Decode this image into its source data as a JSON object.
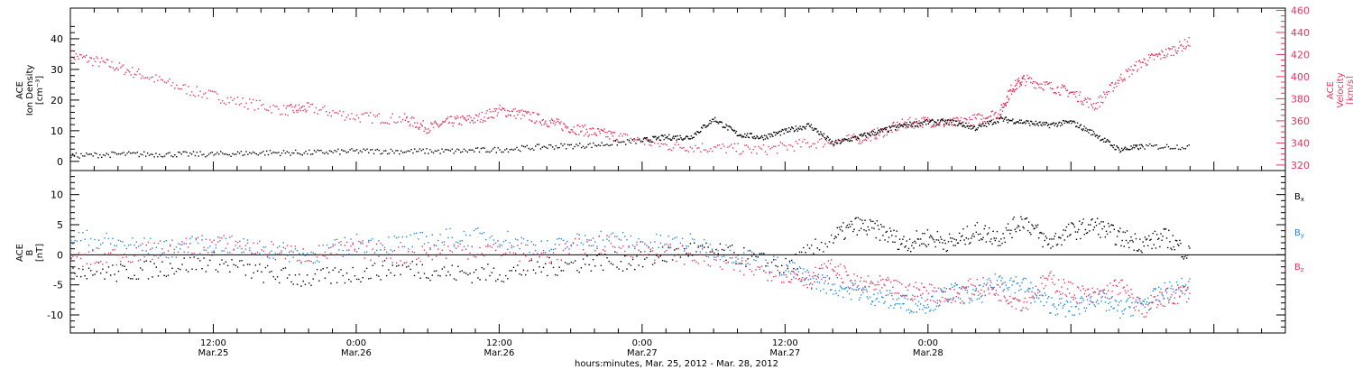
{
  "colors": {
    "black": "#000000",
    "pink": "#e8345f",
    "blue": "#1e88e5"
  },
  "chart_data": [
    {
      "type": "scatter",
      "panel": "top",
      "ylabel_lines": [
        "ACE",
        "Ion Density",
        "[cm⁻³]"
      ],
      "y2label_lines": [
        "ACE",
        "Velocity",
        "[km/s]"
      ],
      "xlim_hours": [
        0,
        102
      ],
      "ylim": [
        -3,
        50
      ],
      "y2lim": [
        315,
        462
      ],
      "yticks": [
        0,
        10,
        20,
        30,
        40
      ],
      "y2ticks": [
        320,
        340,
        360,
        380,
        400,
        420,
        440,
        460
      ],
      "series": [
        {
          "color_key": "black",
          "axis": "left",
          "x": [
            0,
            4,
            8,
            12,
            16,
            20,
            24,
            28,
            32,
            36,
            40,
            44,
            48,
            50,
            52,
            54,
            56,
            58,
            60,
            62,
            64,
            66,
            68,
            70,
            72,
            74,
            76,
            78,
            80,
            82,
            84,
            86,
            88,
            90,
            94
          ],
          "y": [
            2,
            2.5,
            2.5,
            2.5,
            3,
            3,
            3.5,
            3.5,
            3.5,
            4,
            5,
            5.5,
            7,
            8,
            8,
            14,
            9,
            8,
            10,
            12,
            6,
            8,
            10,
            12,
            13,
            13,
            11,
            14,
            13,
            12,
            13,
            9,
            4,
            5,
            5
          ]
        },
        {
          "color_key": "pink",
          "axis": "right",
          "x": [
            0,
            3,
            6,
            10,
            14,
            18,
            20,
            24,
            28,
            30,
            32,
            34,
            36,
            38,
            40,
            42,
            44,
            46,
            50,
            54,
            58,
            62,
            66,
            68,
            70,
            72,
            74,
            76,
            78,
            79,
            80,
            82,
            84,
            86,
            88,
            90,
            92,
            94
          ],
          "y": [
            420,
            412,
            402,
            388,
            378,
            370,
            372,
            364,
            362,
            354,
            360,
            362,
            370,
            366,
            360,
            354,
            350,
            346,
            338,
            336,
            334,
            340,
            344,
            350,
            358,
            360,
            358,
            362,
            368,
            390,
            398,
            392,
            386,
            374,
            398,
            414,
            422,
            432
          ]
        }
      ]
    },
    {
      "type": "scatter",
      "panel": "bottom",
      "ylabel_lines": [
        "ACE",
        "B",
        "[nT]"
      ],
      "ylim": [
        -13,
        14
      ],
      "yticks": [
        -10,
        -5,
        0,
        5,
        10
      ],
      "legend": [
        {
          "label": "B",
          "sub": "x",
          "color_key": "black"
        },
        {
          "label": "B",
          "sub": "y",
          "color_key": "blue"
        },
        {
          "label": "B",
          "sub": "z",
          "color_key": "pink"
        }
      ],
      "series": [
        {
          "color_key": "black",
          "x": [
            0,
            4,
            8,
            12,
            16,
            20,
            24,
            28,
            32,
            36,
            40,
            44,
            48,
            52,
            56,
            60,
            64,
            66,
            68,
            70,
            72,
            74,
            76,
            78,
            80,
            82,
            84,
            86,
            88,
            90,
            92,
            94
          ],
          "y": [
            -2,
            -3,
            -2,
            -1,
            -3,
            -4,
            -3,
            -2,
            -3,
            -3,
            -2,
            -1,
            -1,
            1,
            0,
            -2,
            3,
            5,
            4,
            2,
            3,
            2,
            4,
            3,
            6,
            2,
            4,
            5,
            3,
            2,
            3,
            0
          ]
        },
        {
          "color_key": "blue",
          "x": [
            0,
            4,
            8,
            12,
            16,
            20,
            24,
            28,
            32,
            36,
            40,
            44,
            48,
            52,
            56,
            60,
            62,
            64,
            66,
            68,
            70,
            72,
            74,
            76,
            78,
            80,
            82,
            84,
            86,
            88,
            90,
            92,
            94
          ],
          "y": [
            3,
            2,
            1,
            2,
            1,
            0,
            2,
            2,
            3,
            3,
            1,
            3,
            2,
            2,
            0,
            -2,
            -4,
            -5,
            -6,
            -7,
            -8,
            -8,
            -6,
            -7,
            -4,
            -5,
            -8,
            -9,
            -7,
            -9,
            -8,
            -6,
            -5
          ]
        },
        {
          "color_key": "pink",
          "x": [
            0,
            4,
            8,
            12,
            16,
            20,
            24,
            28,
            32,
            36,
            40,
            44,
            48,
            52,
            56,
            60,
            62,
            64,
            66,
            68,
            70,
            72,
            74,
            76,
            78,
            80,
            82,
            84,
            86,
            88,
            90,
            92,
            94
          ],
          "y": [
            -1,
            0,
            1,
            2,
            1,
            0,
            1,
            0,
            1,
            1,
            0,
            2,
            1,
            0,
            -2,
            -3,
            -4,
            -2,
            -5,
            -5,
            -6,
            -6,
            -7,
            -5,
            -6,
            -8,
            -4,
            -6,
            -7,
            -5,
            -9,
            -7,
            -6
          ]
        }
      ]
    }
  ],
  "xaxis": {
    "ticks": [
      {
        "hours": 12,
        "line1": "12:00",
        "line2": "Mar.25"
      },
      {
        "hours": 24,
        "line1": "0:00",
        "line2": "Mar.26"
      },
      {
        "hours": 36,
        "line1": "12:00",
        "line2": "Mar.26"
      },
      {
        "hours": 48,
        "line1": "0:00",
        "line2": "Mar.27"
      },
      {
        "hours": 60,
        "line1": "12:00",
        "line2": "Mar.27"
      },
      {
        "hours": 72,
        "line1": "0:00",
        "line2": "Mar.28"
      }
    ],
    "label": "hours:minutes, Mar. 25, 2012 - Mar. 28, 2012"
  }
}
